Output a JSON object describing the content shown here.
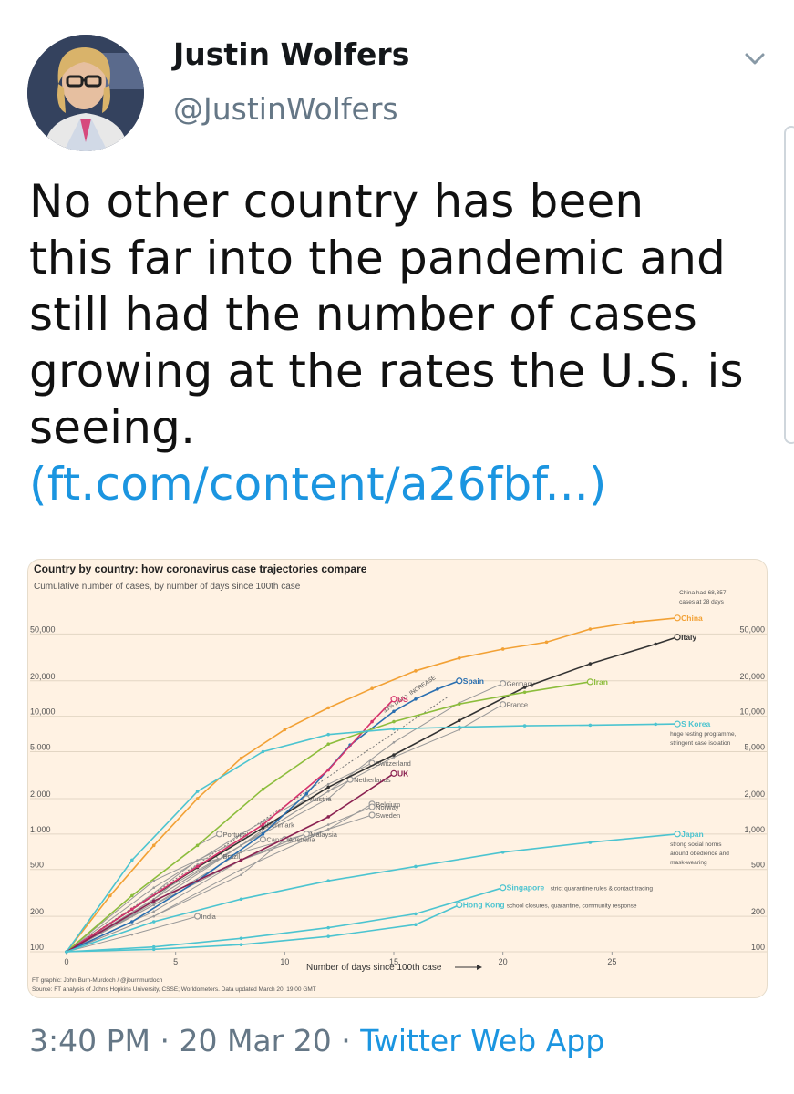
{
  "tweet": {
    "author_name": "Justin Wolfers",
    "author_handle": "@JustinWolfers",
    "text_lines": [
      "No other country has been",
      "this far into the pandemic and",
      "still had the number of cases",
      "growing at the rates the U.S. is",
      "seeing."
    ],
    "link_text": "(ft.com/content/a26fbf...)",
    "time": "3:40 PM",
    "date": "20 Mar 20",
    "separator": "·",
    "source_app": "Twitter Web App"
  },
  "icons": {
    "menu": "chevron-down-icon",
    "avatar": "avatar"
  },
  "colors": {
    "accent": "#1b95e0",
    "muted": "#657786",
    "chart_bg": "#fff2e3"
  },
  "chart_data": {
    "type": "line",
    "title": "Country by country: how coronavirus case trajectories compare",
    "subtitle": "Cumulative number of cases, by number of days since 100th case",
    "xlabel": "Number of days since 100th case",
    "ylabel": "",
    "y_scale": "log",
    "xlim": [
      0,
      30
    ],
    "ylim": [
      100,
      80000
    ],
    "x_ticks": [
      0,
      5,
      10,
      15,
      20,
      25
    ],
    "x_tick_labels": [
      "0",
      "5",
      "10",
      "15",
      "20",
      "25"
    ],
    "y_ticks": [
      100,
      200,
      500,
      1000,
      2000,
      5000,
      10000,
      20000,
      50000
    ],
    "y_tick_labels": [
      "100",
      "200",
      "500",
      "1,000",
      "2,000",
      "5,000",
      "10,000",
      "20,000",
      "50,000"
    ],
    "reference_line_label": "33% DAILY INCREASE",
    "series": [
      {
        "name": "China",
        "color": "#f2a135",
        "x": [
          0,
          2,
          4,
          6,
          8,
          10,
          12,
          14,
          16,
          18,
          20,
          22,
          24,
          26,
          28
        ],
        "y": [
          100,
          300,
          800,
          2000,
          4400,
          7700,
          11800,
          17200,
          24300,
          31200,
          37200,
          42600,
          55000,
          63000,
          68357
        ]
      },
      {
        "name": "Italy",
        "color": "#333333",
        "x": [
          0,
          3,
          6,
          9,
          12,
          15,
          18,
          21,
          24,
          27,
          28
        ],
        "y": [
          100,
          230,
          520,
          1130,
          2500,
          4700,
          9200,
          17600,
          27900,
          41000,
          47000
        ]
      },
      {
        "name": "Spain",
        "color": "#2a6fb0",
        "x": [
          0,
          3,
          6,
          9,
          11,
          13,
          15,
          16,
          17,
          18
        ],
        "y": [
          100,
          180,
          400,
          1000,
          2200,
          5700,
          11000,
          14000,
          17000,
          20000
        ]
      },
      {
        "name": "US",
        "color": "#d6336c",
        "x": [
          0,
          3,
          6,
          9,
          12,
          14,
          15
        ],
        "y": [
          100,
          230,
          530,
          1200,
          3500,
          9000,
          14000
        ]
      },
      {
        "name": "Germany",
        "color": "#999999",
        "x": [
          0,
          4,
          8,
          12,
          15,
          18,
          20
        ],
        "y": [
          100,
          280,
          800,
          2300,
          6000,
          13000,
          19000
        ]
      },
      {
        "name": "Iran",
        "color": "#8cbd3c",
        "x": [
          0,
          3,
          6,
          9,
          12,
          15,
          18,
          21,
          24
        ],
        "y": [
          100,
          300,
          800,
          2400,
          5800,
          9000,
          12700,
          16000,
          19600
        ]
      },
      {
        "name": "France",
        "color": "#999999",
        "x": [
          0,
          4,
          8,
          12,
          15,
          18,
          20
        ],
        "y": [
          100,
          280,
          800,
          2300,
          4500,
          7700,
          12600
        ]
      },
      {
        "name": "S Korea",
        "color": "#4cc4d0",
        "x": [
          0,
          3,
          6,
          9,
          12,
          15,
          18,
          21,
          24,
          27,
          28
        ],
        "y": [
          100,
          600,
          2300,
          5000,
          7000,
          7800,
          8100,
          8300,
          8400,
          8560,
          8600
        ]
      },
      {
        "name": "Switzerland",
        "color": "#999999",
        "x": [
          0,
          4,
          8,
          12,
          14
        ],
        "y": [
          100,
          350,
          1000,
          2650,
          4000
        ]
      },
      {
        "name": "UK",
        "color": "#8b2252",
        "x": [
          0,
          4,
          8,
          12,
          15
        ],
        "y": [
          100,
          270,
          600,
          1400,
          3270
        ]
      },
      {
        "name": "Netherlands",
        "color": "#999999",
        "x": [
          0,
          4,
          8,
          12,
          13
        ],
        "y": [
          100,
          260,
          800,
          2000,
          2900
        ]
      },
      {
        "name": "Belgium",
        "color": "#999999",
        "x": [
          0,
          4,
          8,
          12,
          14
        ],
        "y": [
          100,
          200,
          500,
          1100,
          1800
        ]
      },
      {
        "name": "Austria",
        "color": "#999999",
        "x": [
          0,
          4,
          8,
          11
        ],
        "y": [
          100,
          300,
          800,
          2000
        ]
      },
      {
        "name": "Norway",
        "color": "#999999",
        "x": [
          0,
          4,
          8,
          12,
          14
        ],
        "y": [
          100,
          250,
          600,
          1200,
          1700
        ]
      },
      {
        "name": "Sweden",
        "color": "#999999",
        "x": [
          0,
          4,
          8,
          12,
          14
        ],
        "y": [
          100,
          220,
          600,
          1100,
          1450
        ]
      },
      {
        "name": "Portugal",
        "color": "#999999",
        "x": [
          0,
          3,
          6,
          7
        ],
        "y": [
          100,
          300,
          800,
          1000
        ]
      },
      {
        "name": "Denmark",
        "color": "#999999",
        "x": [
          0,
          4,
          8,
          9
        ],
        "y": [
          100,
          400,
          900,
          1200
        ]
      },
      {
        "name": "Canada",
        "color": "#999999",
        "x": [
          0,
          4,
          8,
          9
        ],
        "y": [
          100,
          250,
          700,
          900
        ]
      },
      {
        "name": "Malaysia",
        "color": "#999999",
        "x": [
          0,
          3,
          6,
          11
        ],
        "y": [
          100,
          200,
          550,
          1000
        ]
      },
      {
        "name": "Australia",
        "color": "#999999",
        "x": [
          0,
          4,
          8,
          10
        ],
        "y": [
          100,
          200,
          450,
          900
        ]
      },
      {
        "name": "Brazil",
        "color": "#999999",
        "x": [
          0,
          3,
          6,
          7
        ],
        "y": [
          100,
          230,
          600,
          650
        ]
      },
      {
        "name": "India",
        "color": "#999999",
        "x": [
          0,
          3,
          6
        ],
        "y": [
          100,
          140,
          200
        ]
      },
      {
        "name": "Japan",
        "color": "#4cc4d0",
        "x": [
          0,
          4,
          8,
          12,
          16,
          20,
          24,
          28
        ],
        "y": [
          100,
          180,
          280,
          400,
          530,
          700,
          850,
          1000
        ]
      },
      {
        "name": "Singapore",
        "color": "#4cc4d0",
        "x": [
          0,
          4,
          8,
          12,
          16,
          20
        ],
        "y": [
          100,
          110,
          130,
          160,
          210,
          350
        ]
      },
      {
        "name": "Hong Kong",
        "color": "#4cc4d0",
        "x": [
          0,
          4,
          8,
          12,
          16,
          18
        ],
        "y": [
          100,
          105,
          115,
          135,
          170,
          250
        ]
      }
    ],
    "annotations": [
      {
        "series": "China",
        "text": "China had 68,357"
      },
      {
        "series": "China",
        "text": "cases at 28 days"
      },
      {
        "series": "S Korea",
        "text": "huge testing programme,"
      },
      {
        "series": "S Korea",
        "text": "stringent case isolation"
      },
      {
        "series": "Japan",
        "text": "strong social norms"
      },
      {
        "series": "Japan",
        "text": "around obedience and"
      },
      {
        "series": "Japan",
        "text": "mask-wearing"
      },
      {
        "series": "Singapore",
        "text": "strict quarantine rules & contact tracing"
      },
      {
        "series": "Hong Kong",
        "text": "school closures, quarantine, community response"
      }
    ],
    "source_lines": [
      "FT graphic: John Burn-Murdoch / @jburnmurdoch",
      "Source: FT analysis of Johns Hopkins University, CSSE; Worldometers. Data updated March 20, 19:00 GMT"
    ],
    "grid": true
  }
}
